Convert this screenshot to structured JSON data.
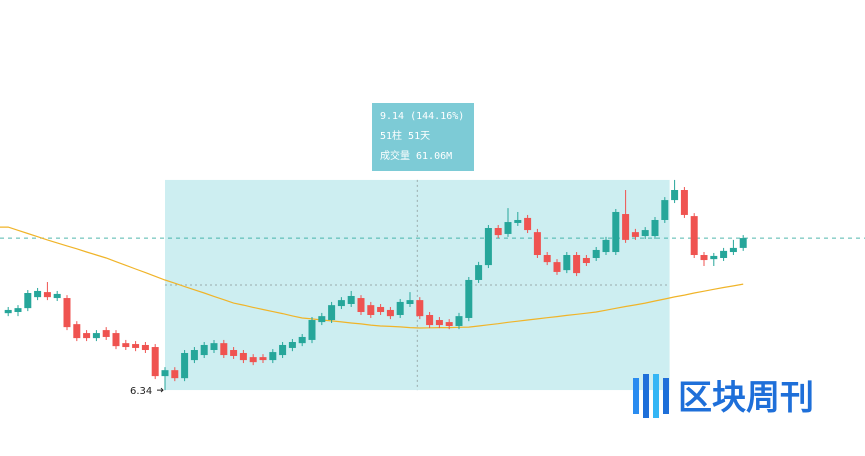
{
  "chart_data": {
    "type": "candlestick",
    "up_color": "#26a69a",
    "down_color": "#ef5350",
    "ma_color": "#f0b429",
    "ylim": [
      3.46,
      23.38
    ],
    "open": [
      9.7,
      9.75,
      9.92,
      10.4,
      10.62,
      10.36,
      10.36,
      9.22,
      8.83,
      8.61,
      8.96,
      8.83,
      8.39,
      8.35,
      8.31,
      8.22,
      6.95,
      7.21,
      6.86,
      7.65,
      7.87,
      8.09,
      8.39,
      8.09,
      7.96,
      7.78,
      7.78,
      7.65,
      7.87,
      8.18,
      8.39,
      8.53,
      9.31,
      9.4,
      10.01,
      10.1,
      10.36,
      10.05,
      9.97,
      9.84,
      9.62,
      10.1,
      10.27,
      9.62,
      9.4,
      9.31,
      9.14,
      9.49,
      11.15,
      11.8,
      13.42,
      13.16,
      13.64,
      13.86,
      13.24,
      12.24,
      11.93,
      11.58,
      12.24,
      12.11,
      12.11,
      12.37,
      12.37,
      14.03,
      13.24,
      13.07,
      13.07,
      13.77,
      14.64,
      15.08,
      13.94,
      12.24,
      12.06,
      12.11,
      12.37,
      12.55
    ],
    "close": [
      9.84,
      9.92,
      10.58,
      10.67,
      10.4,
      10.54,
      9.09,
      8.61,
      8.61,
      8.83,
      8.66,
      8.26,
      8.22,
      8.18,
      8.09,
      6.95,
      7.21,
      6.86,
      7.96,
      8.09,
      8.31,
      8.39,
      7.87,
      7.83,
      7.65,
      7.56,
      7.65,
      8.0,
      8.31,
      8.44,
      8.66,
      9.4,
      9.57,
      10.05,
      10.27,
      10.45,
      9.75,
      9.62,
      9.75,
      9.57,
      10.19,
      10.27,
      9.57,
      9.18,
      9.18,
      9.14,
      9.57,
      11.15,
      11.8,
      13.42,
      13.11,
      13.68,
      13.77,
      13.33,
      12.24,
      11.93,
      11.5,
      12.24,
      11.45,
      11.89,
      12.46,
      12.9,
      14.12,
      12.9,
      13.03,
      13.33,
      13.77,
      14.64,
      15.08,
      13.99,
      12.24,
      12.02,
      12.2,
      12.42,
      12.55,
      12.98
    ],
    "high": [
      9.97,
      10.05,
      10.71,
      10.8,
      11.06,
      10.67,
      10.49,
      9.35,
      8.96,
      8.96,
      9.09,
      8.96,
      8.53,
      8.48,
      8.44,
      8.35,
      7.34,
      7.34,
      8.09,
      8.22,
      8.44,
      8.53,
      8.53,
      8.22,
      8.09,
      7.91,
      7.91,
      8.13,
      8.44,
      8.57,
      8.79,
      9.53,
      9.71,
      10.19,
      10.4,
      10.67,
      10.49,
      10.19,
      10.1,
      9.97,
      10.32,
      10.62,
      10.4,
      9.75,
      9.53,
      9.44,
      9.71,
      11.28,
      11.94,
      13.55,
      13.55,
      14.29,
      14.12,
      13.99,
      13.38,
      12.37,
      12.06,
      12.37,
      12.37,
      12.24,
      12.59,
      13.03,
      14.25,
      15.08,
      13.38,
      13.46,
      13.9,
      14.77,
      15.52,
      15.21,
      14.07,
      12.37,
      12.33,
      12.55,
      12.9,
      13.11
    ],
    "low": [
      9.57,
      9.57,
      9.79,
      10.27,
      10.27,
      10.23,
      8.96,
      8.48,
      8.48,
      8.48,
      8.53,
      8.13,
      8.09,
      8.04,
      7.96,
      6.82,
      6.34,
      6.73,
      6.73,
      7.52,
      7.74,
      7.96,
      7.74,
      7.7,
      7.52,
      7.43,
      7.52,
      7.52,
      7.74,
      8.04,
      8.26,
      8.39,
      9.18,
      9.27,
      9.88,
      9.97,
      9.62,
      9.49,
      9.62,
      9.44,
      9.49,
      9.97,
      9.44,
      9.05,
      9.05,
      9.0,
      9.0,
      9.35,
      11.02,
      11.67,
      12.98,
      13.03,
      13.51,
      13.2,
      12.11,
      11.8,
      11.37,
      11.45,
      11.32,
      11.76,
      11.98,
      12.24,
      12.24,
      12.77,
      12.9,
      12.94,
      12.94,
      13.64,
      14.51,
      13.86,
      12.11,
      11.76,
      11.76,
      11.98,
      12.24,
      12.42
    ],
    "ma": [
      13.46,
      13.32,
      13.18,
      13.04,
      12.9,
      12.77,
      12.64,
      12.51,
      12.37,
      12.24,
      12.11,
      11.95,
      11.79,
      11.63,
      11.47,
      11.31,
      11.15,
      11.01,
      10.86,
      10.72,
      10.58,
      10.43,
      10.29,
      10.14,
      10.05,
      9.95,
      9.86,
      9.77,
      9.68,
      9.58,
      9.49,
      9.45,
      9.4,
      9.36,
      9.32,
      9.27,
      9.23,
      9.18,
      9.14,
      9.12,
      9.1,
      9.07,
      9.05,
      9.06,
      9.07,
      9.07,
      9.08,
      9.09,
      9.14,
      9.19,
      9.24,
      9.3,
      9.35,
      9.4,
      9.45,
      9.5,
      9.55,
      9.6,
      9.65,
      9.7,
      9.75,
      9.83,
      9.91,
      9.99,
      10.06,
      10.14,
      10.23,
      10.32,
      10.41,
      10.49,
      10.58,
      10.66,
      10.74,
      10.82,
      10.89,
      10.97
    ],
    "measure": {
      "change": "9.14 (144.16%)",
      "bars": "51柱 51天",
      "volume": "成交量 61.06M",
      "start_label": "6.34"
    },
    "logo": "区块周刊"
  }
}
